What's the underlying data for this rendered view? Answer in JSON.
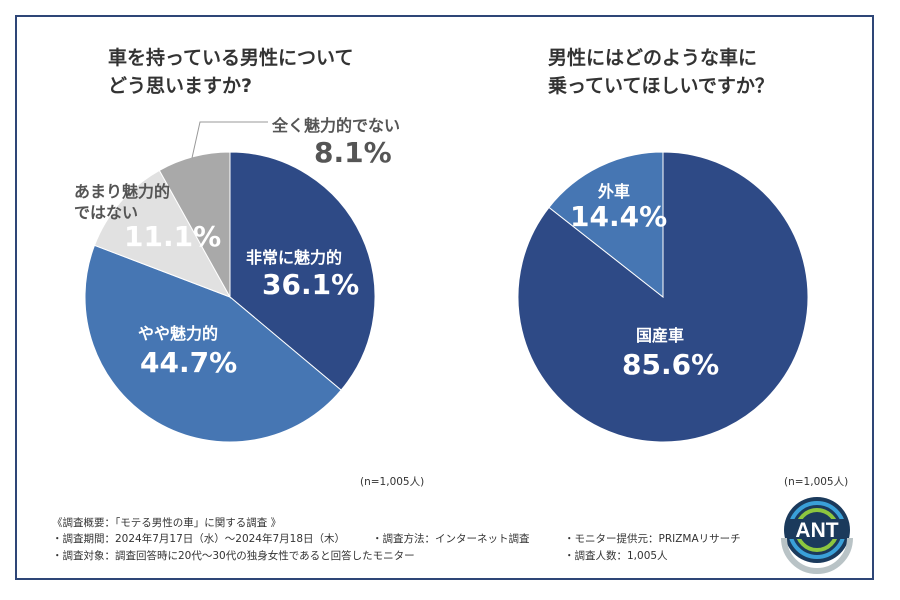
{
  "chart_data": [
    {
      "type": "pie",
      "title": "車を持っている男性について\nどう思いますか?",
      "title_lines": [
        "車を持っている男性について",
        "どう思いますか?"
      ],
      "slices": [
        {
          "label": "非常に魅力的",
          "value": 36.1,
          "value_label": "36.1%",
          "color": "#2e4a86"
        },
        {
          "label": "やや魅力的",
          "value": 44.7,
          "value_label": "44.7%",
          "color": "#4676b3"
        },
        {
          "label": "あまり魅力的ではない",
          "label_lines": [
            "あまり魅力的",
            "ではない"
          ],
          "value": 11.1,
          "value_label": "11.1%",
          "color": "#e1e1e1"
        },
        {
          "label": "全く魅力的でない",
          "value": 8.1,
          "value_label": "8.1%",
          "color": "#a9a9a9"
        }
      ],
      "sample": "(n=1,005人)",
      "start": "top",
      "direction": "clockwise"
    },
    {
      "type": "pie",
      "title": "男性にはどのような車に\n乗っていてほしいですか？",
      "title_lines": [
        "男性にはどのような車に",
        "乗っていてほしいですか？"
      ],
      "slices": [
        {
          "label": "国産車",
          "value": 85.6,
          "value_label": "85.6%",
          "color": "#2e4a86"
        },
        {
          "label": "外車",
          "value": 14.4,
          "value_label": "14.4%",
          "color": "#4676b3"
        }
      ],
      "sample": "(n=1,005人)",
      "start": "top",
      "direction": "clockwise"
    }
  ],
  "footer": {
    "heading": "《調査概要：「モテる男性の車」に関する調査 》",
    "period": "・調査期間：2024年7月17日（水）～2024年7月18日（木）",
    "method": "・調査方法：インターネット調査",
    "provider": "・モニター提供元：PRIZMAリサーチ",
    "target": "・調査対象：調査回答時に20代～30代の独身女性であると回答したモニター",
    "count": "・調査人数：1,005人"
  },
  "logo": {
    "text": "ANT"
  },
  "colors": {
    "border": "#2e4677",
    "dark": "#2e4a86",
    "medium": "#4676b3"
  }
}
